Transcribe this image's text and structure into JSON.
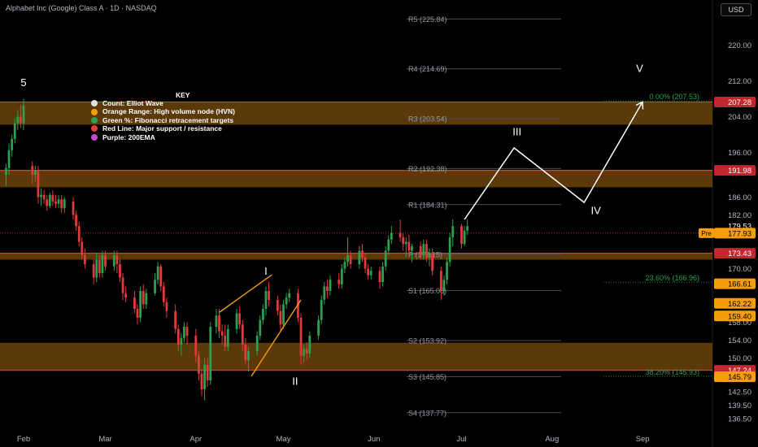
{
  "header": {
    "title": "Alphabet Inc (Google) Class A · 1D · NASDAQ",
    "currency": "USD"
  },
  "legend": {
    "title": "KEY",
    "items": [
      {
        "label": "Count: Elliot Wave",
        "color": "#e0e0e0"
      },
      {
        "label": "Orange Range: High volume node (HVN)",
        "color": "#f59d0b"
      },
      {
        "label": "Green %: Fibonacci retracement targets",
        "color": "#2e9e4f"
      },
      {
        "label": "Red Line: Major support / resistance",
        "color": "#e33b3b"
      },
      {
        "label": "Purple: 200EMA",
        "color": "#c44ad6"
      }
    ]
  },
  "colors": {
    "background": "#000000",
    "up": "#26a69a",
    "up_candle": "#2e9e4f",
    "down_candle": "#e03a3a",
    "zone": "#6b4309",
    "red_line": "#e33b3b",
    "pivot_line": "#4a4d57",
    "fib_text": "#2e9e4f",
    "wave": "#ffffff",
    "wedge": "#f59d0b",
    "label_red": "#c2272d",
    "label_orange": "#f59d0b",
    "label_grey": "#2a2e39"
  },
  "chart_data": {
    "type": "candlestick",
    "title": "Alphabet Inc (Google) Class A · 1D · NASDAQ",
    "y_axis": {
      "ylim": [
        134.5,
        225.5
      ],
      "ticks": [
        220.0,
        212.0,
        204.0,
        196.0,
        186.0,
        182.0,
        170.0,
        158.0,
        154.0,
        150.0,
        142.5,
        139.5,
        136.5
      ],
      "tick_labels": [
        "220.00",
        "212.00",
        "204.00",
        "196.00",
        "186.00",
        "182.00",
        "170.00",
        "158.00",
        "154.00",
        "150.00",
        "142.50",
        "139.50",
        "136.50"
      ]
    },
    "x_axis": {
      "labels": [
        {
          "label": "Feb",
          "day": 1
        },
        {
          "label": "Mar",
          "day": 29
        },
        {
          "label": "Apr",
          "day": 60
        },
        {
          "label": "May",
          "day": 90
        },
        {
          "label": "Jun",
          "day": 121
        },
        {
          "label": "Jul",
          "day": 151
        },
        {
          "label": "Aug",
          "day": 182
        },
        {
          "label": "Sep",
          "day": 213
        }
      ]
    },
    "price_labels": [
      {
        "value": 207.28,
        "text": "207.28",
        "style": "red"
      },
      {
        "value": 191.98,
        "text": "191.98",
        "style": "red"
      },
      {
        "value": 179.53,
        "text": "179.53",
        "style": "plain"
      },
      {
        "value": 177.93,
        "text": "177.93",
        "style": "orange",
        "tag": "Pre"
      },
      {
        "value": 173.43,
        "text": "173.43",
        "style": "red"
      },
      {
        "value": 166.61,
        "text": "166.61",
        "style": "orange"
      },
      {
        "value": 162.22,
        "text": "162.22",
        "style": "orange"
      },
      {
        "value": 159.4,
        "text": "159.40",
        "style": "orange"
      },
      {
        "value": 147.24,
        "text": "147.24",
        "style": "red"
      },
      {
        "value": 145.79,
        "text": "145.79",
        "style": "orange"
      }
    ],
    "hvn_zones": [
      {
        "low": 202.2,
        "high": 207.28
      },
      {
        "low": 188.2,
        "high": 191.98
      },
      {
        "low": 172.0,
        "high": 173.43
      },
      {
        "low": 147.24,
        "high": 153.4
      }
    ],
    "red_lines": [
      207.28,
      191.98,
      173.43,
      147.24
    ],
    "pivots": [
      {
        "label": "R5 (225.84)",
        "value": 225.84
      },
      {
        "label": "R4 (214.69)",
        "value": 214.69
      },
      {
        "label": "R3 (203.54)",
        "value": 203.54
      },
      {
        "label": "R2 (192.38)",
        "value": 192.38
      },
      {
        "label": "R1 (184.31)",
        "value": 184.31
      },
      {
        "label": "P (173.15)",
        "value": 173.15
      },
      {
        "label": "S1 (165.08)",
        "value": 165.08
      },
      {
        "label": "S2 (153.92)",
        "value": 153.92
      },
      {
        "label": "S3 (145.85)",
        "value": 145.85
      },
      {
        "label": "S4 (137.77)",
        "value": 137.77
      }
    ],
    "fib_targets": [
      {
        "label": "0.00% (207.53)",
        "value": 207.53
      },
      {
        "label": "23.60% (166.96)",
        "value": 166.96
      },
      {
        "label": "38.20% (145.93)",
        "value": 145.93
      }
    ],
    "wave_labels": [
      {
        "label": "5",
        "day": 1,
        "value": 210.8
      },
      {
        "label": "I",
        "day": 84,
        "value": 168.6
      },
      {
        "label": "II",
        "day": 94,
        "value": 144.0
      },
      {
        "label": "III",
        "day": 170,
        "value": 199.8
      },
      {
        "label": "IV",
        "day": 197,
        "value": 182.2
      },
      {
        "label": "V",
        "day": 212,
        "value": 214.0
      }
    ],
    "wave_projection": [
      {
        "day": 152,
        "value": 181.0
      },
      {
        "day": 169,
        "value": 197.0
      },
      {
        "day": 193,
        "value": 184.8
      },
      {
        "day": 213,
        "value": 207.3
      }
    ],
    "wedge_lines": [
      [
        {
          "day": 68,
          "value": 160.2
        },
        {
          "day": 86,
          "value": 168.6
        }
      ],
      [
        {
          "day": 79,
          "value": 145.9
        },
        {
          "day": 96,
          "value": 163.0
        }
      ]
    ],
    "candles": [
      {
        "day": -5,
        "o": 191.0,
        "h": 193.5,
        "l": 188.5,
        "c": 192.5
      },
      {
        "day": -4,
        "o": 192.5,
        "h": 198.0,
        "l": 191.0,
        "c": 196.5
      },
      {
        "day": -3,
        "o": 196.5,
        "h": 200.0,
        "l": 195.0,
        "c": 199.0
      },
      {
        "day": -2,
        "o": 199.0,
        "h": 203.5,
        "l": 198.0,
        "c": 202.5
      },
      {
        "day": -1,
        "o": 202.5,
        "h": 205.5,
        "l": 201.0,
        "c": 204.0
      },
      {
        "day": 0,
        "o": 204.0,
        "h": 206.5,
        "l": 201.5,
        "c": 202.5
      },
      {
        "day": 1,
        "o": 202.5,
        "h": 208.0,
        "l": 201.0,
        "c": 206.5
      },
      {
        "day": 4,
        "o": 193.0,
        "h": 194.0,
        "l": 189.0,
        "c": 191.0
      },
      {
        "day": 5,
        "o": 191.0,
        "h": 193.0,
        "l": 189.5,
        "c": 192.0
      },
      {
        "day": 6,
        "o": 192.0,
        "h": 193.0,
        "l": 184.5,
        "c": 186.0
      },
      {
        "day": 7,
        "o": 186.0,
        "h": 188.0,
        "l": 184.0,
        "c": 186.5
      },
      {
        "day": 8,
        "o": 186.5,
        "h": 187.5,
        "l": 184.5,
        "c": 185.5
      },
      {
        "day": 9,
        "o": 185.5,
        "h": 186.5,
        "l": 183.0,
        "c": 184.0
      },
      {
        "day": 10,
        "o": 184.0,
        "h": 187.0,
        "l": 183.5,
        "c": 186.5
      },
      {
        "day": 11,
        "o": 186.5,
        "h": 187.5,
        "l": 184.0,
        "c": 185.0
      },
      {
        "day": 12,
        "o": 185.0,
        "h": 186.5,
        "l": 183.5,
        "c": 184.5
      },
      {
        "day": 13,
        "o": 184.5,
        "h": 186.5,
        "l": 183.5,
        "c": 185.5
      },
      {
        "day": 14,
        "o": 185.5,
        "h": 186.5,
        "l": 182.5,
        "c": 183.5
      },
      {
        "day": 15,
        "o": 183.5,
        "h": 186.0,
        "l": 182.5,
        "c": 185.5
      },
      {
        "day": 18,
        "o": 185.0,
        "h": 186.0,
        "l": 181.0,
        "c": 182.0
      },
      {
        "day": 19,
        "o": 182.0,
        "h": 183.0,
        "l": 178.5,
        "c": 179.5
      },
      {
        "day": 20,
        "o": 179.5,
        "h": 180.5,
        "l": 175.0,
        "c": 176.0
      },
      {
        "day": 21,
        "o": 176.0,
        "h": 177.0,
        "l": 172.0,
        "c": 173.0
      },
      {
        "day": 22,
        "o": 173.0,
        "h": 174.5,
        "l": 170.0,
        "c": 171.0
      },
      {
        "day": 25,
        "o": 171.0,
        "h": 172.0,
        "l": 166.5,
        "c": 168.0
      },
      {
        "day": 26,
        "o": 168.0,
        "h": 173.5,
        "l": 167.0,
        "c": 172.0
      },
      {
        "day": 27,
        "o": 172.0,
        "h": 173.0,
        "l": 168.0,
        "c": 169.0
      },
      {
        "day": 28,
        "o": 169.0,
        "h": 174.0,
        "l": 168.0,
        "c": 173.0
      },
      {
        "day": 29,
        "o": 173.0,
        "h": 174.0,
        "l": 169.5,
        "c": 170.5
      },
      {
        "day": 32,
        "o": 170.5,
        "h": 174.0,
        "l": 169.5,
        "c": 173.0
      },
      {
        "day": 33,
        "o": 173.0,
        "h": 174.0,
        "l": 169.0,
        "c": 171.0
      },
      {
        "day": 34,
        "o": 171.0,
        "h": 172.0,
        "l": 167.0,
        "c": 168.0
      },
      {
        "day": 35,
        "o": 168.0,
        "h": 169.0,
        "l": 163.0,
        "c": 164.5
      },
      {
        "day": 36,
        "o": 164.5,
        "h": 166.0,
        "l": 162.5,
        "c": 163.5
      },
      {
        "day": 39,
        "o": 163.5,
        "h": 165.0,
        "l": 160.0,
        "c": 161.0
      },
      {
        "day": 40,
        "o": 161.0,
        "h": 162.0,
        "l": 157.5,
        "c": 159.0
      },
      {
        "day": 41,
        "o": 159.0,
        "h": 166.0,
        "l": 158.0,
        "c": 165.0
      },
      {
        "day": 42,
        "o": 165.0,
        "h": 166.5,
        "l": 161.0,
        "c": 162.0
      },
      {
        "day": 43,
        "o": 162.0,
        "h": 165.5,
        "l": 161.0,
        "c": 164.5
      },
      {
        "day": 46,
        "o": 164.5,
        "h": 169.0,
        "l": 164.0,
        "c": 167.5
      },
      {
        "day": 47,
        "o": 167.5,
        "h": 171.5,
        "l": 166.5,
        "c": 170.5
      },
      {
        "day": 48,
        "o": 170.5,
        "h": 171.0,
        "l": 165.0,
        "c": 166.0
      },
      {
        "day": 49,
        "o": 166.0,
        "h": 167.0,
        "l": 161.5,
        "c": 162.5
      },
      {
        "day": 50,
        "o": 162.5,
        "h": 163.5,
        "l": 159.0,
        "c": 160.5
      },
      {
        "day": 53,
        "o": 160.5,
        "h": 162.0,
        "l": 155.5,
        "c": 156.5
      },
      {
        "day": 54,
        "o": 156.5,
        "h": 157.5,
        "l": 151.5,
        "c": 153.0
      },
      {
        "day": 55,
        "o": 153.0,
        "h": 155.5,
        "l": 150.5,
        "c": 154.5
      },
      {
        "day": 56,
        "o": 154.5,
        "h": 158.0,
        "l": 153.5,
        "c": 157.0
      },
      {
        "day": 57,
        "o": 157.0,
        "h": 158.0,
        "l": 153.0,
        "c": 155.0
      },
      {
        "day": 60,
        "o": 155.0,
        "h": 156.5,
        "l": 149.0,
        "c": 150.5
      },
      {
        "day": 61,
        "o": 150.5,
        "h": 151.5,
        "l": 145.0,
        "c": 146.5
      },
      {
        "day": 62,
        "o": 146.5,
        "h": 147.5,
        "l": 141.5,
        "c": 143.0
      },
      {
        "day": 63,
        "o": 143.0,
        "h": 150.0,
        "l": 140.5,
        "c": 148.5
      },
      {
        "day": 64,
        "o": 148.5,
        "h": 150.0,
        "l": 143.5,
        "c": 145.0
      },
      {
        "day": 65,
        "o": 145.0,
        "h": 158.0,
        "l": 144.0,
        "c": 157.0
      },
      {
        "day": 67,
        "o": 157.0,
        "h": 161.0,
        "l": 155.5,
        "c": 159.5
      },
      {
        "day": 68,
        "o": 159.5,
        "h": 161.0,
        "l": 154.5,
        "c": 156.0
      },
      {
        "day": 69,
        "o": 156.0,
        "h": 157.5,
        "l": 153.0,
        "c": 155.0
      },
      {
        "day": 70,
        "o": 155.0,
        "h": 157.5,
        "l": 151.5,
        "c": 152.5
      },
      {
        "day": 71,
        "o": 152.5,
        "h": 157.5,
        "l": 151.5,
        "c": 156.5
      },
      {
        "day": 74,
        "o": 156.5,
        "h": 161.0,
        "l": 155.5,
        "c": 160.0
      },
      {
        "day": 75,
        "o": 160.0,
        "h": 161.5,
        "l": 156.5,
        "c": 157.5
      },
      {
        "day": 76,
        "o": 157.5,
        "h": 158.5,
        "l": 151.5,
        "c": 153.0
      },
      {
        "day": 77,
        "o": 153.0,
        "h": 154.5,
        "l": 148.5,
        "c": 149.5
      },
      {
        "day": 78,
        "o": 149.5,
        "h": 152.5,
        "l": 147.0,
        "c": 151.5
      },
      {
        "day": 81,
        "o": 151.5,
        "h": 156.0,
        "l": 150.5,
        "c": 155.0
      },
      {
        "day": 82,
        "o": 155.0,
        "h": 159.5,
        "l": 154.0,
        "c": 158.5
      },
      {
        "day": 83,
        "o": 158.5,
        "h": 162.0,
        "l": 157.5,
        "c": 161.0
      },
      {
        "day": 84,
        "o": 161.0,
        "h": 166.0,
        "l": 159.5,
        "c": 165.0
      },
      {
        "day": 85,
        "o": 165.0,
        "h": 167.0,
        "l": 161.5,
        "c": 163.0
      },
      {
        "day": 88,
        "o": 163.0,
        "h": 164.0,
        "l": 159.5,
        "c": 160.5
      },
      {
        "day": 89,
        "o": 160.5,
        "h": 162.0,
        "l": 156.0,
        "c": 157.5
      },
      {
        "day": 90,
        "o": 157.5,
        "h": 163.0,
        "l": 156.5,
        "c": 162.0
      },
      {
        "day": 91,
        "o": 162.0,
        "h": 164.5,
        "l": 161.0,
        "c": 163.5
      },
      {
        "day": 92,
        "o": 163.5,
        "h": 165.5,
        "l": 162.5,
        "c": 164.5
      },
      {
        "day": 95,
        "o": 164.5,
        "h": 165.5,
        "l": 158.0,
        "c": 159.0
      },
      {
        "day": 96,
        "o": 159.0,
        "h": 160.0,
        "l": 148.5,
        "c": 150.5
      },
      {
        "day": 97,
        "o": 150.5,
        "h": 153.0,
        "l": 149.0,
        "c": 152.0
      },
      {
        "day": 98,
        "o": 152.0,
        "h": 153.5,
        "l": 149.5,
        "c": 151.0
      },
      {
        "day": 99,
        "o": 151.0,
        "h": 156.0,
        "l": 150.0,
        "c": 155.0
      },
      {
        "day": 102,
        "o": 155.0,
        "h": 159.5,
        "l": 154.0,
        "c": 158.5
      },
      {
        "day": 103,
        "o": 158.5,
        "h": 164.0,
        "l": 157.5,
        "c": 163.0
      },
      {
        "day": 104,
        "o": 163.0,
        "h": 167.0,
        "l": 162.0,
        "c": 166.0
      },
      {
        "day": 105,
        "o": 166.0,
        "h": 167.5,
        "l": 163.5,
        "c": 165.0
      },
      {
        "day": 106,
        "o": 165.0,
        "h": 168.5,
        "l": 164.0,
        "c": 167.5
      },
      {
        "day": 109,
        "o": 167.5,
        "h": 169.0,
        "l": 165.5,
        "c": 166.5
      },
      {
        "day": 110,
        "o": 166.5,
        "h": 171.0,
        "l": 165.5,
        "c": 170.0
      },
      {
        "day": 111,
        "o": 170.0,
        "h": 172.5,
        "l": 169.0,
        "c": 171.5
      },
      {
        "day": 112,
        "o": 171.5,
        "h": 177.0,
        "l": 170.5,
        "c": 173.0
      },
      {
        "day": 113,
        "o": 173.0,
        "h": 174.0,
        "l": 170.0,
        "c": 171.0
      },
      {
        "day": 116,
        "o": 171.0,
        "h": 175.0,
        "l": 170.0,
        "c": 174.0
      },
      {
        "day": 117,
        "o": 174.0,
        "h": 175.5,
        "l": 171.5,
        "c": 172.5
      },
      {
        "day": 118,
        "o": 172.5,
        "h": 173.5,
        "l": 169.0,
        "c": 170.0
      },
      {
        "day": 119,
        "o": 170.0,
        "h": 171.0,
        "l": 167.5,
        "c": 168.5
      },
      {
        "day": 120,
        "o": 168.5,
        "h": 170.5,
        "l": 167.5,
        "c": 169.5
      },
      {
        "day": 123,
        "o": 169.5,
        "h": 170.5,
        "l": 165.5,
        "c": 167.0
      },
      {
        "day": 124,
        "o": 167.0,
        "h": 171.5,
        "l": 166.0,
        "c": 170.5
      },
      {
        "day": 125,
        "o": 170.5,
        "h": 175.0,
        "l": 169.5,
        "c": 174.0
      },
      {
        "day": 126,
        "o": 174.0,
        "h": 177.5,
        "l": 173.0,
        "c": 176.5
      },
      {
        "day": 127,
        "o": 176.5,
        "h": 179.5,
        "l": 175.5,
        "c": 178.0
      },
      {
        "day": 130,
        "o": 178.0,
        "h": 181.0,
        "l": 176.0,
        "c": 177.0
      },
      {
        "day": 131,
        "o": 177.0,
        "h": 178.0,
        "l": 174.0,
        "c": 175.5
      },
      {
        "day": 132,
        "o": 175.5,
        "h": 177.0,
        "l": 172.5,
        "c": 176.0
      },
      {
        "day": 133,
        "o": 176.0,
        "h": 177.5,
        "l": 173.0,
        "c": 174.0
      },
      {
        "day": 134,
        "o": 174.0,
        "h": 175.5,
        "l": 171.5,
        "c": 175.0
      },
      {
        "day": 137,
        "o": 175.0,
        "h": 176.0,
        "l": 172.0,
        "c": 173.0
      },
      {
        "day": 138,
        "o": 173.0,
        "h": 176.5,
        "l": 172.0,
        "c": 175.5
      },
      {
        "day": 139,
        "o": 175.5,
        "h": 176.5,
        "l": 171.5,
        "c": 172.5
      },
      {
        "day": 140,
        "o": 172.5,
        "h": 174.5,
        "l": 170.5,
        "c": 173.5
      },
      {
        "day": 141,
        "o": 173.5,
        "h": 174.5,
        "l": 168.5,
        "c": 169.5
      },
      {
        "day": 144,
        "o": 169.5,
        "h": 170.5,
        "l": 163.0,
        "c": 165.0
      },
      {
        "day": 145,
        "o": 165.0,
        "h": 168.5,
        "l": 164.0,
        "c": 167.5
      },
      {
        "day": 146,
        "o": 167.5,
        "h": 172.5,
        "l": 166.5,
        "c": 171.5
      },
      {
        "day": 147,
        "o": 171.5,
        "h": 178.0,
        "l": 170.5,
        "c": 177.0
      },
      {
        "day": 148,
        "o": 177.0,
        "h": 181.0,
        "l": 175.0,
        "c": 179.5
      },
      {
        "day": 151,
        "o": 179.5,
        "h": 180.0,
        "l": 174.5,
        "c": 175.5
      },
      {
        "day": 152,
        "o": 175.5,
        "h": 179.5,
        "l": 175.0,
        "c": 178.5
      },
      {
        "day": 153,
        "o": 178.5,
        "h": 181.0,
        "l": 177.5,
        "c": 179.5
      }
    ]
  }
}
